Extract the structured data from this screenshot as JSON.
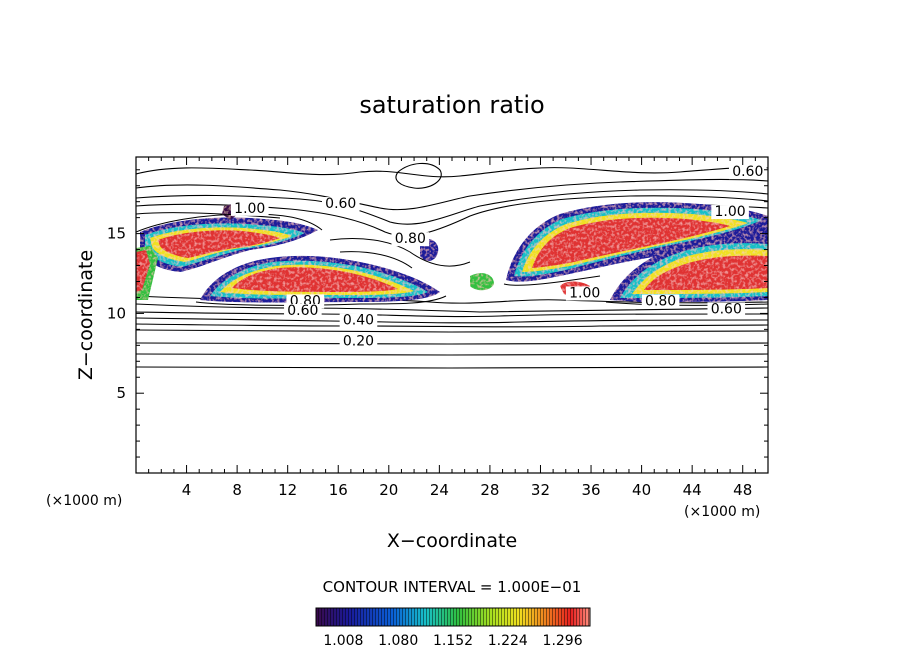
{
  "chart_data": {
    "type": "heatmap",
    "title": "saturation ratio",
    "xlabel": "X−coordinate",
    "ylabel": "Z−coordinate",
    "x_unit": "(×1000 m)",
    "z_unit": "(×1000 m)",
    "xlim": [
      0,
      50
    ],
    "ylim": [
      0,
      19.8
    ],
    "x_ticks": [
      4,
      8,
      12,
      16,
      20,
      24,
      28,
      32,
      36,
      40,
      44,
      48
    ],
    "y_ticks": [
      5,
      10,
      15
    ],
    "contour_interval_text": "CONTOUR INTERVAL = 1.000E−01",
    "colorbar_ticks": [
      "1.008",
      "1.080",
      "1.152",
      "1.224",
      "1.296"
    ],
    "colorbar_range": [
      0.972,
      1.332
    ],
    "contour_labels": [
      {
        "text": "0.60",
        "x": 48.4,
        "y": 18.6
      },
      {
        "text": "0.60",
        "x": 16.2,
        "y": 16.6
      },
      {
        "text": "1.00",
        "x": 9.0,
        "y": 16.3
      },
      {
        "text": "1.00",
        "x": 47.0,
        "y": 16.1
      },
      {
        "text": "0.80",
        "x": 21.7,
        "y": 14.4
      },
      {
        "text": "1.00",
        "x": 35.5,
        "y": 11.0
      },
      {
        "text": "0.80",
        "x": 41.5,
        "y": 10.5
      },
      {
        "text": "0.80",
        "x": 13.4,
        "y": 10.5
      },
      {
        "text": "0.60",
        "x": 13.2,
        "y": 9.9
      },
      {
        "text": "0.60",
        "x": 46.7,
        "y": 10.0
      },
      {
        "text": "0.40",
        "x": 17.6,
        "y": 9.3
      },
      {
        "text": "0.20",
        "x": 17.6,
        "y": 8.0
      }
    ],
    "contour_levels": [
      0.2,
      0.4,
      0.6,
      0.8,
      1.0
    ],
    "supersaturated_regions": [
      {
        "x": [
          0.5,
          14.5
        ],
        "z": [
          14.0,
          16.8
        ],
        "peak": 1.3
      },
      {
        "x": [
          6.0,
          21.0
        ],
        "z": [
          10.8,
          13.8
        ],
        "peak": 1.3
      },
      {
        "x": [
          29.0,
          49.5
        ],
        "z": [
          12.0,
          17.0
        ],
        "peak": 1.3
      },
      {
        "x": [
          36.0,
          50.0
        ],
        "z": [
          10.8,
          14.5
        ],
        "peak": 1.3
      }
    ],
    "grid": false
  }
}
